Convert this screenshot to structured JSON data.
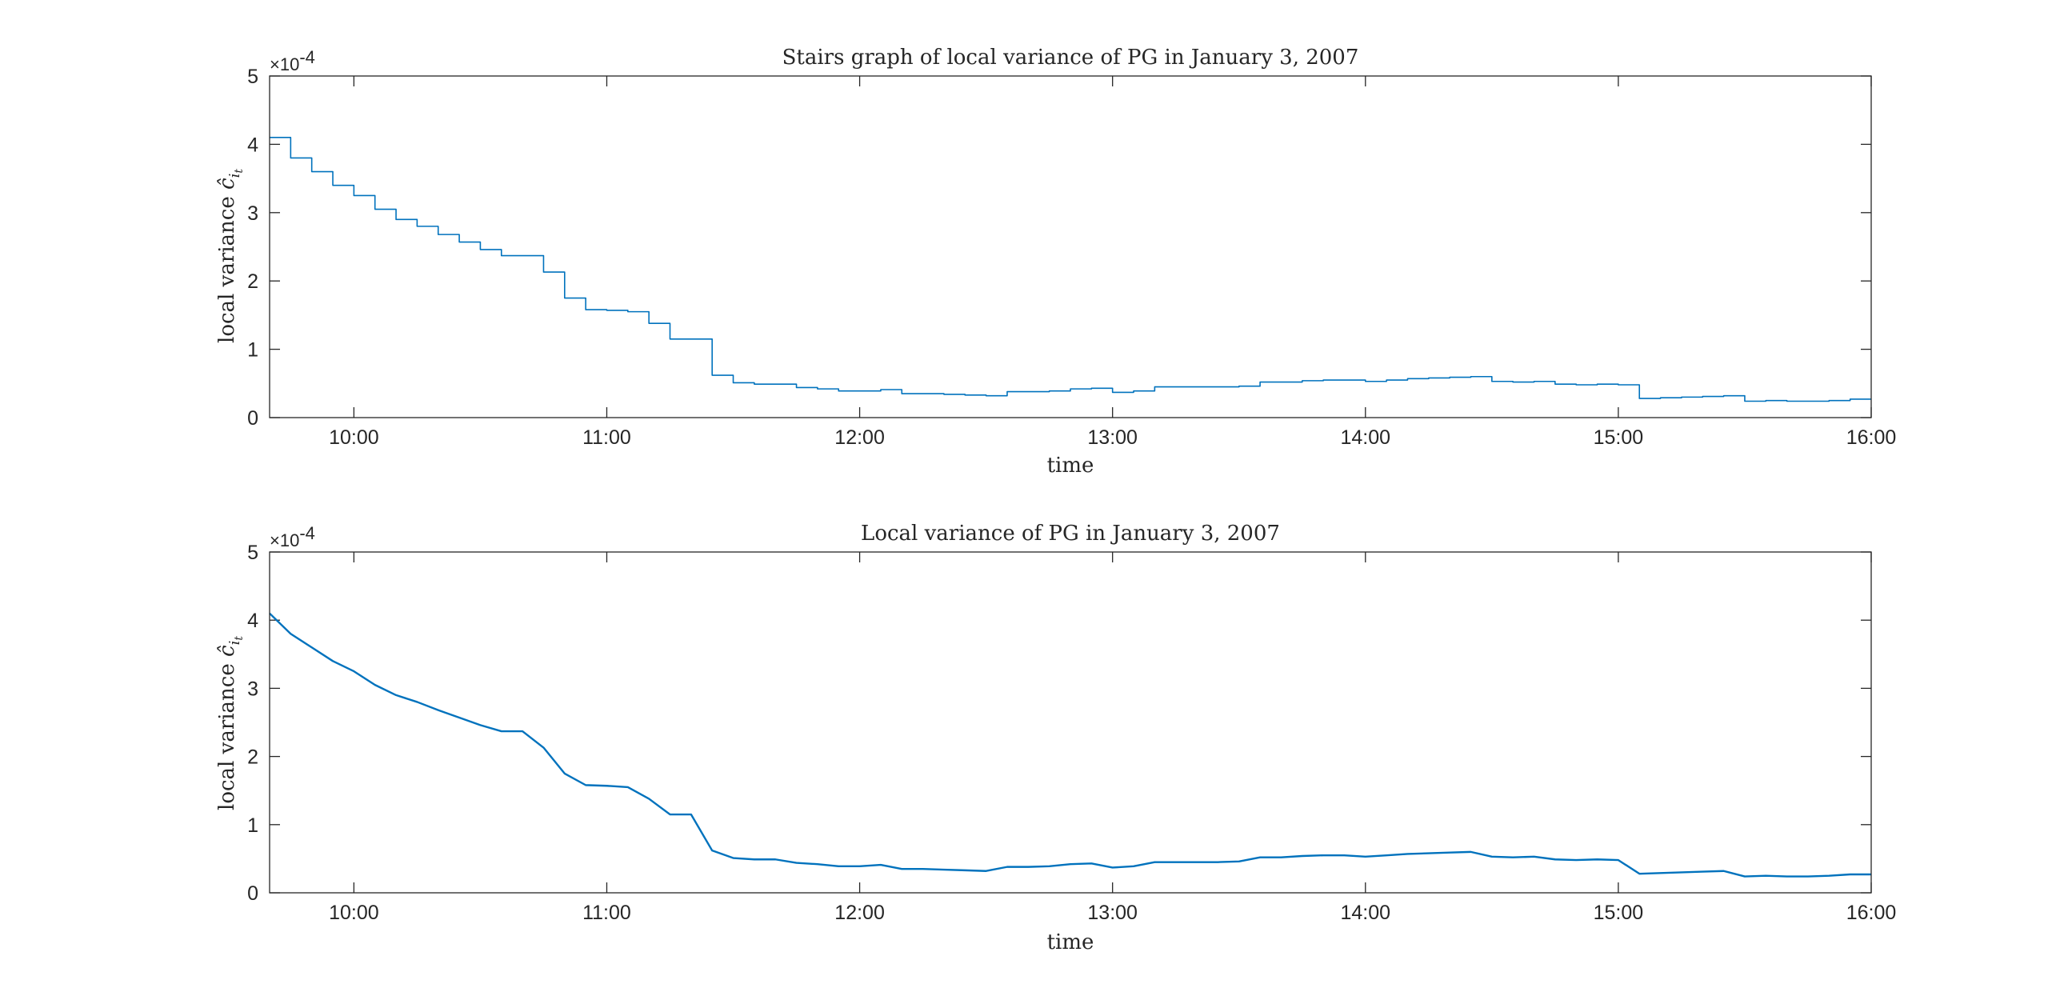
{
  "colors": {
    "series": "#0072BD",
    "axis": "#262626",
    "background": "#ffffff"
  },
  "chart_data": [
    {
      "type": "line",
      "drawstyle": "steps",
      "title": "Stairs graph of local variance of PG in January 3, 2007",
      "xlabel": "time",
      "ylabel_main": "local variance ",
      "ylabel_symbol": "ĉ",
      "ylabel_sub": "i",
      "ylabel_subsub": "t",
      "exponent_prefix": "×10",
      "exponent_power": "-4",
      "xlim": [
        "09:40",
        "16:00"
      ],
      "ylim": [
        0,
        5
      ],
      "grid": false,
      "xticks": [
        "10:00",
        "11:00",
        "12:00",
        "13:00",
        "14:00",
        "15:00",
        "16:00"
      ],
      "yticks": [
        "0",
        "1",
        "2",
        "3",
        "4",
        "5"
      ],
      "series": [
        {
          "x": [
            "09:40",
            "09:45",
            "09:50",
            "09:55",
            "10:00",
            "10:05",
            "10:10",
            "10:15",
            "10:20",
            "10:25",
            "10:30",
            "10:35",
            "10:40",
            "10:45",
            "10:50",
            "10:55",
            "11:00",
            "11:05",
            "11:10",
            "11:15",
            "11:20",
            "11:25",
            "11:30",
            "11:35",
            "11:40",
            "11:45",
            "11:50",
            "11:55",
            "12:00",
            "12:05",
            "12:10",
            "12:15",
            "12:20",
            "12:25",
            "12:30",
            "12:35",
            "12:40",
            "12:45",
            "12:50",
            "12:55",
            "13:00",
            "13:05",
            "13:10",
            "13:15",
            "13:20",
            "13:25",
            "13:30",
            "13:35",
            "13:40",
            "13:45",
            "13:50",
            "13:55",
            "14:00",
            "14:05",
            "14:10",
            "14:15",
            "14:20",
            "14:25",
            "14:30",
            "14:35",
            "14:40",
            "14:45",
            "14:50",
            "14:55",
            "15:00",
            "15:05",
            "15:10",
            "15:15",
            "15:20",
            "15:25",
            "15:30",
            "15:35",
            "15:40",
            "15:45",
            "15:50",
            "15:55",
            "16:00"
          ],
          "values": [
            4.1,
            3.8,
            3.6,
            3.4,
            3.25,
            3.05,
            2.9,
            2.8,
            2.68,
            2.57,
            2.46,
            2.37,
            2.37,
            2.13,
            1.75,
            1.58,
            1.57,
            1.55,
            1.38,
            1.15,
            1.15,
            0.62,
            0.51,
            0.49,
            0.49,
            0.44,
            0.42,
            0.39,
            0.39,
            0.41,
            0.35,
            0.35,
            0.34,
            0.33,
            0.32,
            0.38,
            0.38,
            0.39,
            0.42,
            0.43,
            0.37,
            0.39,
            0.45,
            0.45,
            0.45,
            0.45,
            0.46,
            0.52,
            0.52,
            0.54,
            0.55,
            0.55,
            0.53,
            0.55,
            0.57,
            0.58,
            0.59,
            0.6,
            0.53,
            0.52,
            0.53,
            0.49,
            0.48,
            0.49,
            0.48,
            0.28,
            0.29,
            0.3,
            0.31,
            0.32,
            0.24,
            0.25,
            0.24,
            0.24,
            0.25,
            0.27,
            0.27
          ]
        }
      ]
    },
    {
      "type": "line",
      "title": "Local variance of PG in January 3, 2007",
      "xlabel": "time",
      "ylabel_main": "local variance ",
      "ylabel_symbol": "ĉ",
      "ylabel_sub": "i",
      "ylabel_subsub": "t",
      "exponent_prefix": "×10",
      "exponent_power": "-4",
      "xlim": [
        "09:40",
        "16:00"
      ],
      "ylim": [
        0,
        5
      ],
      "grid": false,
      "xticks": [
        "10:00",
        "11:00",
        "12:00",
        "13:00",
        "14:00",
        "15:00",
        "16:00"
      ],
      "yticks": [
        "0",
        "1",
        "2",
        "3",
        "4",
        "5"
      ],
      "series": [
        {
          "x": [
            "09:40",
            "09:45",
            "09:50",
            "09:55",
            "10:00",
            "10:05",
            "10:10",
            "10:15",
            "10:20",
            "10:25",
            "10:30",
            "10:35",
            "10:40",
            "10:45",
            "10:50",
            "10:55",
            "11:00",
            "11:05",
            "11:10",
            "11:15",
            "11:20",
            "11:25",
            "11:30",
            "11:35",
            "11:40",
            "11:45",
            "11:50",
            "11:55",
            "12:00",
            "12:05",
            "12:10",
            "12:15",
            "12:20",
            "12:25",
            "12:30",
            "12:35",
            "12:40",
            "12:45",
            "12:50",
            "12:55",
            "13:00",
            "13:05",
            "13:10",
            "13:15",
            "13:20",
            "13:25",
            "13:30",
            "13:35",
            "13:40",
            "13:45",
            "13:50",
            "13:55",
            "14:00",
            "14:05",
            "14:10",
            "14:15",
            "14:20",
            "14:25",
            "14:30",
            "14:35",
            "14:40",
            "14:45",
            "14:50",
            "14:55",
            "15:00",
            "15:05",
            "15:10",
            "15:15",
            "15:20",
            "15:25",
            "15:30",
            "15:35",
            "15:40",
            "15:45",
            "15:50",
            "15:55",
            "16:00"
          ],
          "values": [
            4.1,
            3.8,
            3.6,
            3.4,
            3.25,
            3.05,
            2.9,
            2.8,
            2.68,
            2.57,
            2.46,
            2.37,
            2.37,
            2.13,
            1.75,
            1.58,
            1.57,
            1.55,
            1.38,
            1.15,
            1.15,
            0.62,
            0.51,
            0.49,
            0.49,
            0.44,
            0.42,
            0.39,
            0.39,
            0.41,
            0.35,
            0.35,
            0.34,
            0.33,
            0.32,
            0.38,
            0.38,
            0.39,
            0.42,
            0.43,
            0.37,
            0.39,
            0.45,
            0.45,
            0.45,
            0.45,
            0.46,
            0.52,
            0.52,
            0.54,
            0.55,
            0.55,
            0.53,
            0.55,
            0.57,
            0.58,
            0.59,
            0.6,
            0.53,
            0.52,
            0.53,
            0.49,
            0.48,
            0.49,
            0.48,
            0.28,
            0.29,
            0.3,
            0.31,
            0.32,
            0.24,
            0.25,
            0.24,
            0.24,
            0.25,
            0.27,
            0.27
          ]
        }
      ]
    }
  ]
}
